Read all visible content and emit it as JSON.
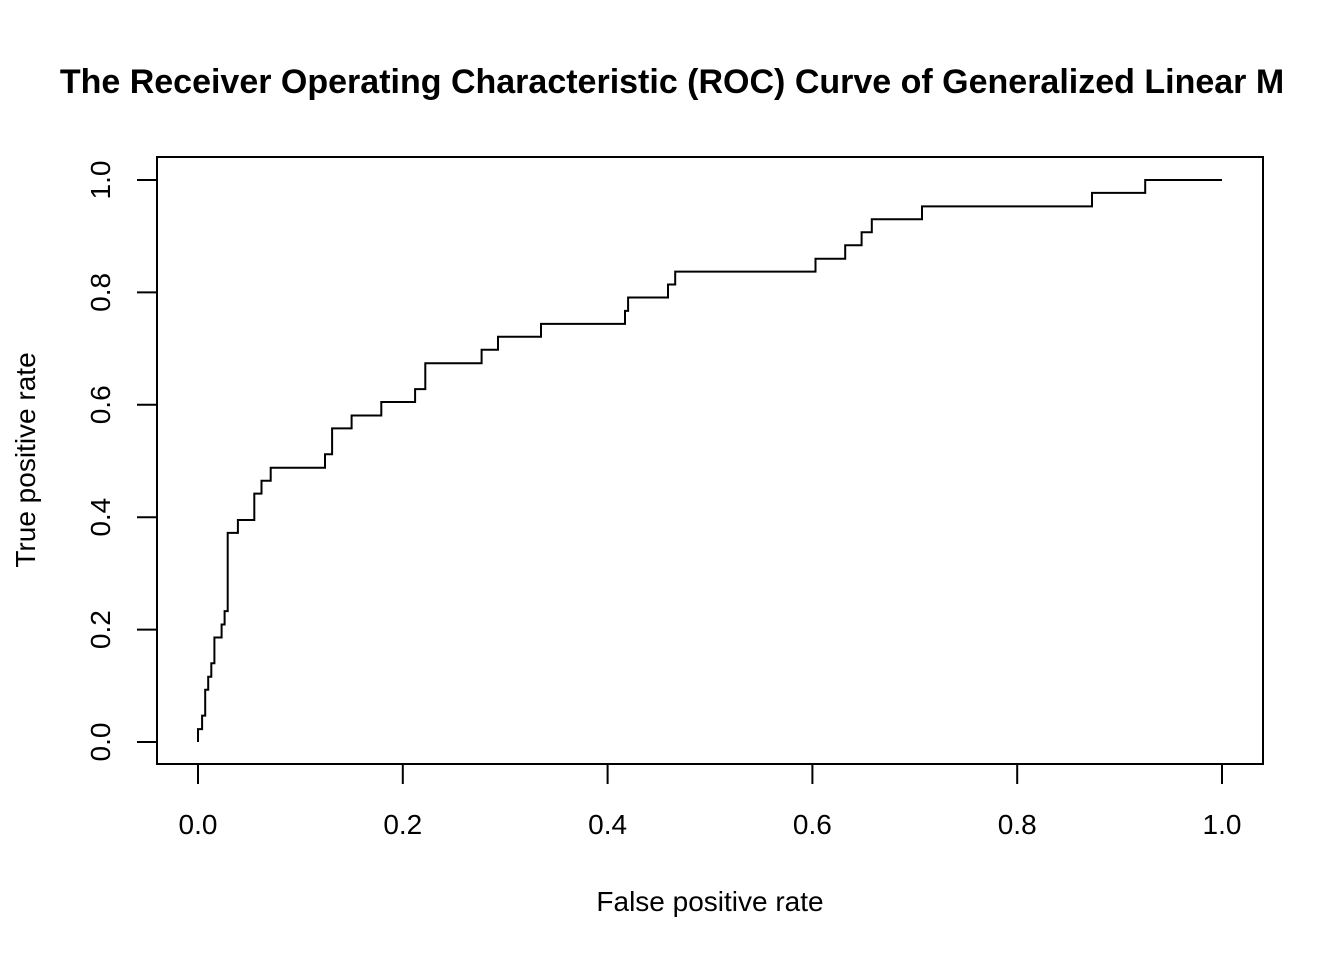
{
  "chart_data": {
    "type": "line",
    "title": "The Receiver Operating Characteristic (ROC) Curve of Generalized Linear M",
    "xlabel": "False positive rate",
    "ylabel": "True positive rate",
    "xlim": [
      0.0,
      1.0
    ],
    "ylim": [
      0.0,
      1.0
    ],
    "x_ticks": [
      "0.0",
      "0.2",
      "0.4",
      "0.6",
      "0.8",
      "1.0"
    ],
    "y_ticks": [
      "0.0",
      "0.2",
      "0.4",
      "0.6",
      "0.8",
      "1.0"
    ],
    "grid": false,
    "legend": "none",
    "series": [
      {
        "line_color": "#000000",
        "step": true,
        "points": [
          [
            0.0,
            0.0
          ],
          [
            0.0,
            0.023
          ],
          [
            0.004,
            0.023
          ],
          [
            0.004,
            0.047
          ],
          [
            0.007,
            0.047
          ],
          [
            0.007,
            0.093
          ],
          [
            0.01,
            0.093
          ],
          [
            0.01,
            0.116
          ],
          [
            0.013,
            0.116
          ],
          [
            0.013,
            0.14
          ],
          [
            0.016,
            0.14
          ],
          [
            0.016,
            0.186
          ],
          [
            0.023,
            0.186
          ],
          [
            0.023,
            0.209
          ],
          [
            0.026,
            0.209
          ],
          [
            0.026,
            0.233
          ],
          [
            0.029,
            0.233
          ],
          [
            0.029,
            0.372
          ],
          [
            0.039,
            0.372
          ],
          [
            0.039,
            0.395
          ],
          [
            0.055,
            0.395
          ],
          [
            0.055,
            0.442
          ],
          [
            0.062,
            0.442
          ],
          [
            0.062,
            0.465
          ],
          [
            0.071,
            0.465
          ],
          [
            0.071,
            0.488
          ],
          [
            0.124,
            0.488
          ],
          [
            0.124,
            0.512
          ],
          [
            0.131,
            0.512
          ],
          [
            0.131,
            0.558
          ],
          [
            0.15,
            0.558
          ],
          [
            0.15,
            0.581
          ],
          [
            0.179,
            0.581
          ],
          [
            0.179,
            0.605
          ],
          [
            0.212,
            0.605
          ],
          [
            0.212,
            0.628
          ],
          [
            0.222,
            0.628
          ],
          [
            0.222,
            0.674
          ],
          [
            0.277,
            0.674
          ],
          [
            0.277,
            0.698
          ],
          [
            0.293,
            0.698
          ],
          [
            0.293,
            0.721
          ],
          [
            0.335,
            0.721
          ],
          [
            0.335,
            0.744
          ],
          [
            0.417,
            0.744
          ],
          [
            0.417,
            0.767
          ],
          [
            0.42,
            0.767
          ],
          [
            0.42,
            0.791
          ],
          [
            0.459,
            0.791
          ],
          [
            0.459,
            0.814
          ],
          [
            0.466,
            0.814
          ],
          [
            0.466,
            0.837
          ],
          [
            0.603,
            0.837
          ],
          [
            0.603,
            0.86
          ],
          [
            0.632,
            0.86
          ],
          [
            0.632,
            0.884
          ],
          [
            0.648,
            0.884
          ],
          [
            0.648,
            0.907
          ],
          [
            0.658,
            0.907
          ],
          [
            0.658,
            0.93
          ],
          [
            0.707,
            0.93
          ],
          [
            0.707,
            0.953
          ],
          [
            0.873,
            0.953
          ],
          [
            0.873,
            0.977
          ],
          [
            0.925,
            0.977
          ],
          [
            0.925,
            1.0
          ],
          [
            1.0,
            1.0
          ]
        ]
      }
    ]
  }
}
